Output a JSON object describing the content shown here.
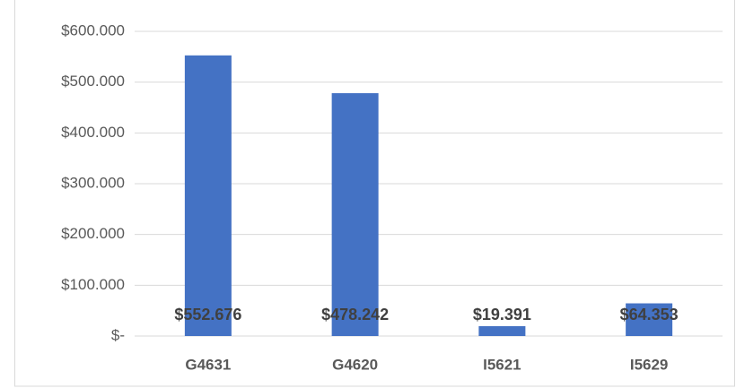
{
  "chart_data": {
    "type": "bar",
    "categories": [
      "G4631",
      "G4620",
      "I5621",
      "I5629"
    ],
    "values": [
      552676,
      478242,
      19391,
      64353
    ],
    "value_labels": [
      "$552.676",
      "$478.242",
      "$19.391",
      "$64.353"
    ],
    "color": "#4472c4",
    "ylim": [
      0,
      600000
    ],
    "yticks": [
      {
        "value": 0,
        "label": "$-"
      },
      {
        "value": 100000,
        "label": "$100.000"
      },
      {
        "value": 200000,
        "label": "$200.000"
      },
      {
        "value": 300000,
        "label": "$300.000"
      },
      {
        "value": 400000,
        "label": "$400.000"
      },
      {
        "value": 500000,
        "label": "$500.000"
      },
      {
        "value": 600000,
        "label": "$600.000"
      }
    ],
    "grid": true
  }
}
